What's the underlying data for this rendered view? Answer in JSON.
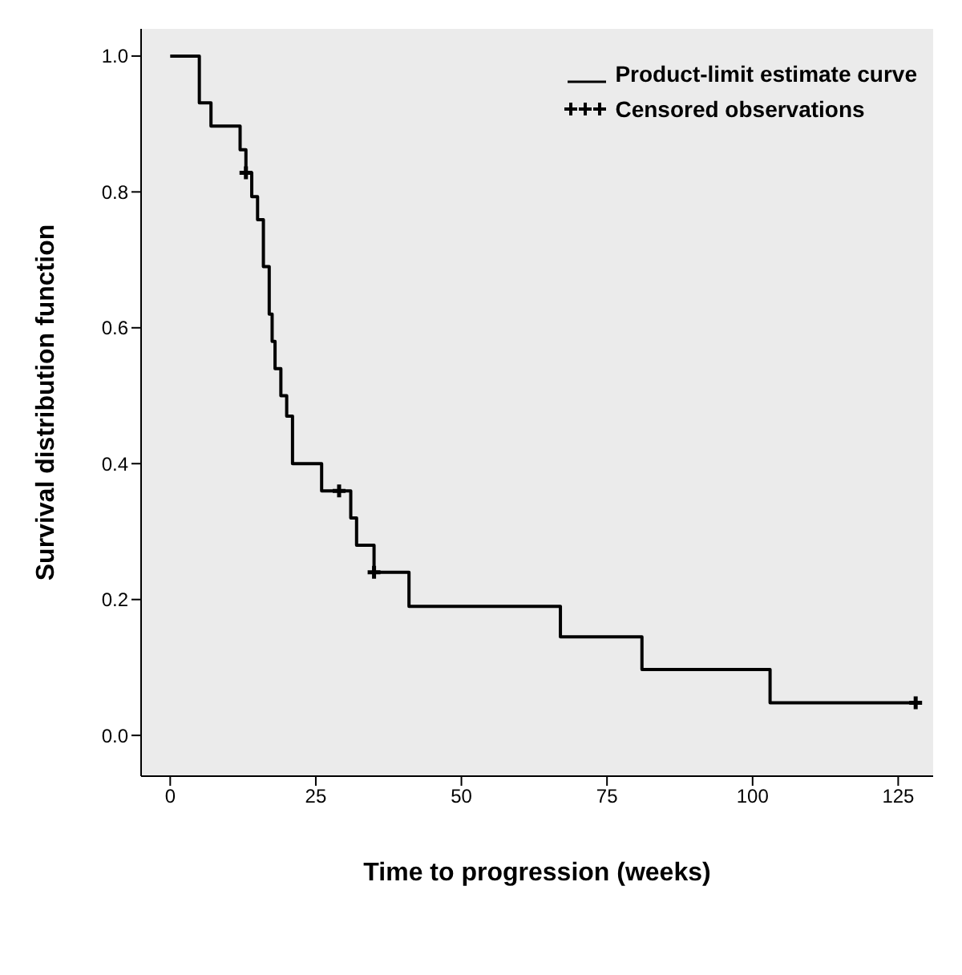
{
  "chart_data": {
    "type": "step",
    "xlabel": "Time to progression (weeks)",
    "ylabel": "Survival distribution function",
    "xlim": [
      -5,
      131
    ],
    "xticks": [
      0,
      25,
      50,
      75,
      100,
      125
    ],
    "ylim": [
      -0.06,
      1.04
    ],
    "yticks": [
      {
        "value": 0,
        "label": "0.0"
      },
      {
        "value": 0.2,
        "label": "0.2"
      },
      {
        "value": 0.4,
        "label": "0.4"
      },
      {
        "value": 0.6,
        "label": "0.6"
      },
      {
        "value": 0.8,
        "label": "0.8"
      },
      {
        "value": 1,
        "label": "1.0"
      }
    ],
    "legend": "top right",
    "grid": false,
    "series": [
      {
        "name": "Product-limit estimate curve",
        "color": "#000000",
        "marker": "none",
        "x": [
          0,
          5,
          7,
          12,
          13,
          14,
          15,
          16,
          17,
          17.5,
          18,
          19,
          20,
          21,
          26,
          29,
          31,
          32,
          35,
          41,
          67,
          81,
          103,
          128
        ],
        "values": [
          1.0,
          0.931,
          0.897,
          0.862,
          0.828,
          0.793,
          0.759,
          0.69,
          0.62,
          0.58,
          0.54,
          0.5,
          0.47,
          0.4,
          0.36,
          0.36,
          0.32,
          0.28,
          0.24,
          0.19,
          0.145,
          0.097,
          0.048,
          0.048
        ]
      },
      {
        "name": "Censored observations",
        "type": "scatter",
        "color": "#000000",
        "marker": "cross",
        "x": [
          13,
          29,
          35,
          128
        ],
        "values": [
          0.828,
          0.36,
          0.24,
          0.048
        ]
      }
    ]
  }
}
